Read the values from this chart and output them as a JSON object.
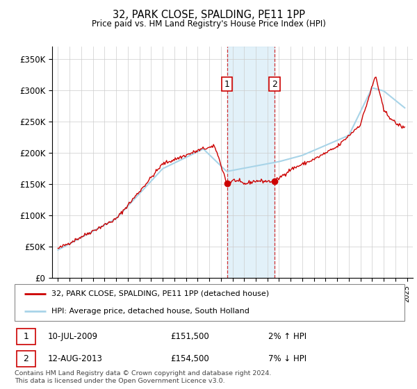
{
  "title": "32, PARK CLOSE, SPALDING, PE11 1PP",
  "subtitle": "Price paid vs. HM Land Registry's House Price Index (HPI)",
  "ylabel_ticks": [
    "£0",
    "£50K",
    "£100K",
    "£150K",
    "£200K",
    "£250K",
    "£300K",
    "£350K"
  ],
  "ytick_values": [
    0,
    50000,
    100000,
    150000,
    200000,
    250000,
    300000,
    350000
  ],
  "ylim": [
    0,
    370000
  ],
  "xlim_start": 1994.5,
  "xlim_end": 2025.5,
  "hpi_color": "#a8d4e8",
  "price_color": "#cc0000",
  "marker1_year": 2009.53,
  "marker1_price": 151500,
  "marker2_year": 2013.62,
  "marker2_price": 154500,
  "legend_line1": "32, PARK CLOSE, SPALDING, PE11 1PP (detached house)",
  "legend_line2": "HPI: Average price, detached house, South Holland",
  "footnote": "Contains HM Land Registry data © Crown copyright and database right 2024.\nThis data is licensed under the Open Government Licence v3.0.",
  "shaded_start": 2009.53,
  "shaded_end": 2013.62
}
